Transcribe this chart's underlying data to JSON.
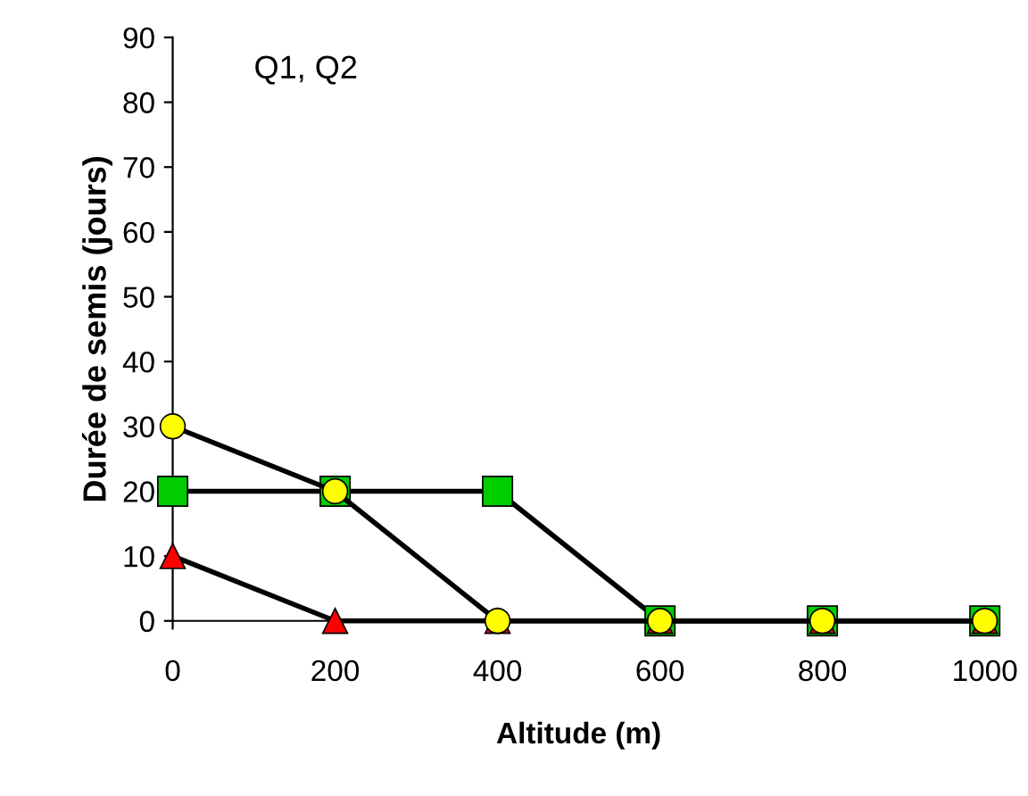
{
  "chart_data": {
    "type": "line",
    "title": "Q1, Q2",
    "xlabel": "Altitude (m)",
    "ylabel": "Durée de semis (jours)",
    "x": [
      0,
      200,
      400,
      600,
      800,
      1000
    ],
    "series": [
      {
        "color": "#00cc00",
        "marker": "square",
        "values": [
          20,
          20,
          20,
          0,
          0,
          0
        ]
      },
      {
        "color": "#ff0000",
        "marker": "triangle",
        "values": [
          10,
          0,
          0,
          0,
          0,
          0
        ]
      },
      {
        "color": "#ffff00",
        "marker": "circle",
        "values": [
          30,
          20,
          0,
          0,
          0,
          0
        ]
      }
    ],
    "xlim": [
      0,
      1000
    ],
    "xticks": [
      0,
      200,
      400,
      600,
      800,
      1000
    ],
    "ylim": [
      0,
      90
    ],
    "yticks": [
      0,
      10,
      20,
      30,
      40,
      50,
      60,
      70,
      80,
      90
    ],
    "grid": false,
    "legend": false,
    "line_style": "solid"
  }
}
